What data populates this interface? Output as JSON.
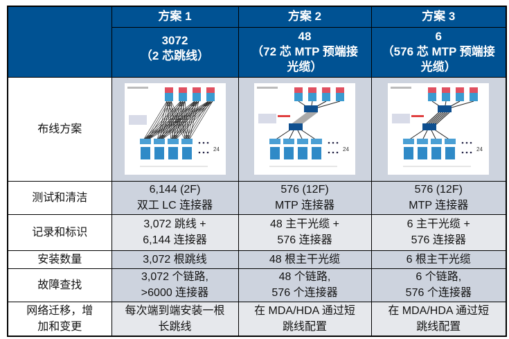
{
  "header": {
    "corner": "",
    "options": [
      {
        "title": "方案 1",
        "count": "3072",
        "desc": "（2 芯跳线）"
      },
      {
        "title": "方案 2",
        "count": "48",
        "desc": "（72 芯 MTP 预端接光缆）"
      },
      {
        "title": "方案 3",
        "count": "6",
        "desc": "（576 芯 MTP 预端接光缆）"
      }
    ]
  },
  "rows": [
    {
      "label": "布线方案",
      "diagram_tag": "24"
    },
    {
      "label": "测试和清洁",
      "cells": [
        [
          "6,144 (2F)",
          "双工 LC 连接器"
        ],
        [
          "576 (12F)",
          "MTP 连接器"
        ],
        [
          "576 (12F)",
          "MTP 连接器"
        ]
      ]
    },
    {
      "label": "记录和标识",
      "cells": [
        [
          "3,072 跳线 +",
          "6,144 连接器"
        ],
        [
          "48 主干光缆 +",
          "576 连接器"
        ],
        [
          "6 主干光缆 +",
          "576 连接器"
        ]
      ]
    },
    {
      "label": "安装数量",
      "cells": [
        [
          "3,072 根跳线"
        ],
        [
          "48 根主干光缆"
        ],
        [
          "6 根主干光缆"
        ]
      ]
    },
    {
      "label": "故障查找",
      "cells": [
        [
          "3,072 个链路,",
          ">6000 连接器"
        ],
        [
          "48 个链路,",
          "576 个连接器"
        ],
        [
          "6 个链路,",
          "576 个连接器"
        ]
      ]
    },
    {
      "label": [
        "网络迁移，增",
        "加和变更"
      ],
      "cells": [
        [
          "每次端到端安装一根",
          "长跳线"
        ],
        [
          "在 MDA/HDA 通过短",
          "跳线配置"
        ],
        [
          "在 MDA/HDA 通过短",
          "跳线配置"
        ]
      ]
    }
  ],
  "colors": {
    "header": "#005293",
    "row_dark": "#cdd3de",
    "row_light": "#e6e8ec"
  }
}
